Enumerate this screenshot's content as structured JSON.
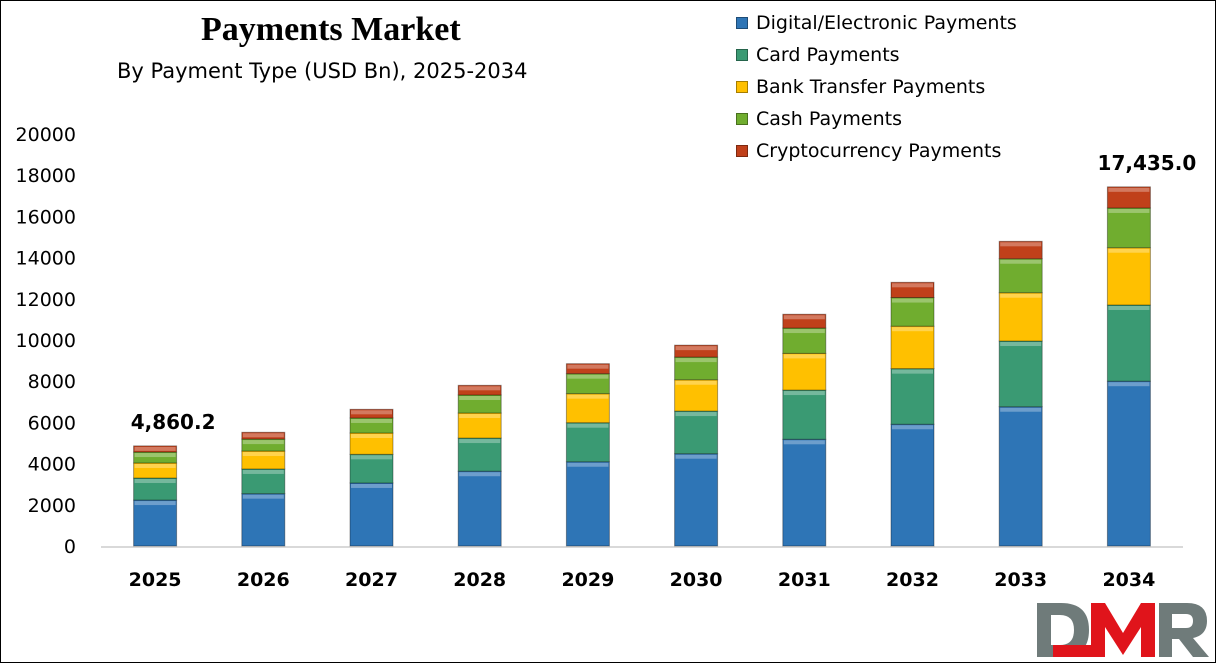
{
  "chart_data": {
    "type": "bar",
    "stacked": true,
    "title": "Payments Market",
    "subtitle": "By Payment Type (USD Bn), 2025-2034",
    "xlabel": "",
    "ylabel": "",
    "ylim": [
      0,
      20000
    ],
    "yticks": [
      0,
      2000,
      4000,
      6000,
      8000,
      10000,
      12000,
      14000,
      16000,
      18000,
      20000
    ],
    "grid": false,
    "legend_position": "top-right",
    "categories": [
      "2025",
      "2026",
      "2027",
      "2028",
      "2029",
      "2030",
      "2031",
      "2032",
      "2033",
      "2034"
    ],
    "series": [
      {
        "name": "Digital/Electronic Payments",
        "color": "#2e75b6",
        "values": [
          2230,
          2540,
          3060,
          3630,
          4090,
          4480,
          5180,
          5910,
          6760,
          8000
        ]
      },
      {
        "name": "Card Payments",
        "color": "#3a9a73",
        "values": [
          1070,
          1200,
          1390,
          1610,
          1895,
          2070,
          2390,
          2700,
          3190,
          3700
        ]
      },
      {
        "name": "Bank Transfer Payments",
        "color": "#ffc000",
        "values": [
          730,
          870,
          1035,
          1215,
          1410,
          1520,
          1780,
          2060,
          2345,
          2780
        ]
      },
      {
        "name": "Cash Payments",
        "color": "#70ad2f",
        "values": [
          530,
          580,
          730,
          875,
          970,
          1100,
          1230,
          1390,
          1650,
          1930
        ]
      },
      {
        "name": "Cryptocurrency Payments",
        "color": "#c0401a",
        "values": [
          300.2,
          330,
          420,
          470,
          485,
          580,
          670,
          740,
          845,
          1025
        ]
      }
    ],
    "data_labels": [
      {
        "category": "2025",
        "text": "4,860.2"
      },
      {
        "category": "2034",
        "text": "17,435.0"
      }
    ]
  },
  "logo": {
    "text": "DMR",
    "colors": {
      "gray": "#6f7b7a",
      "red": "#e0141b"
    }
  }
}
